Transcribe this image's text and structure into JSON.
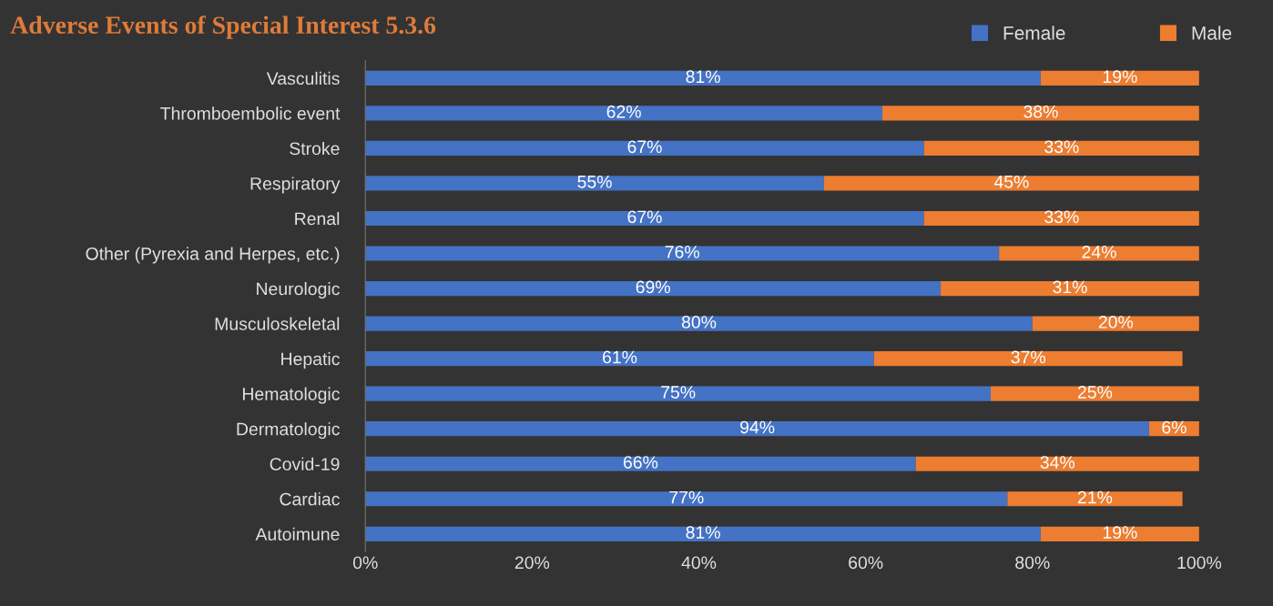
{
  "chart_data": {
    "type": "bar",
    "orientation": "horizontal",
    "stacked": true,
    "title": "Adverse Events of Special Interest 5.3.6",
    "categories": [
      "Vasculitis",
      "Thromboembolic event",
      "Stroke",
      "Respiratory",
      "Renal",
      "Other (Pyrexia and Herpes, etc.)",
      "Neurologic",
      "Musculoskeletal",
      "Hepatic",
      "Hematologic",
      "Dermatologic",
      "Covid-19",
      "Cardiac",
      "Autoimune"
    ],
    "series": [
      {
        "name": "Female",
        "color": "#4472c4",
        "values": [
          81,
          62,
          67,
          55,
          67,
          76,
          69,
          80,
          61,
          75,
          94,
          66,
          77,
          81
        ],
        "value_labels": [
          "81%",
          "62%",
          "67%",
          "55%",
          "67%",
          "76%",
          "69%",
          "80%",
          "61%",
          "75%",
          "94%",
          "66%",
          "77%",
          "81%"
        ]
      },
      {
        "name": "Male",
        "color": "#ed7d31",
        "values": [
          19,
          38,
          33,
          45,
          33,
          24,
          31,
          20,
          37,
          25,
          6,
          34,
          21,
          19
        ],
        "value_labels": [
          "19%",
          "38%",
          "33%",
          "45%",
          "33%",
          "24%",
          "31%",
          "20%",
          "37%",
          "25%",
          "6%",
          "34%",
          "21%",
          "19%"
        ]
      }
    ],
    "xlim": [
      0,
      100
    ],
    "xticks": [
      {
        "value": 0,
        "label": "0%"
      },
      {
        "value": 20,
        "label": "20%"
      },
      {
        "value": 40,
        "label": "40%"
      },
      {
        "value": 60,
        "label": "60%"
      },
      {
        "value": 80,
        "label": "80%"
      },
      {
        "value": 100,
        "label": "100%"
      }
    ],
    "legend": "top right",
    "grid": false
  }
}
